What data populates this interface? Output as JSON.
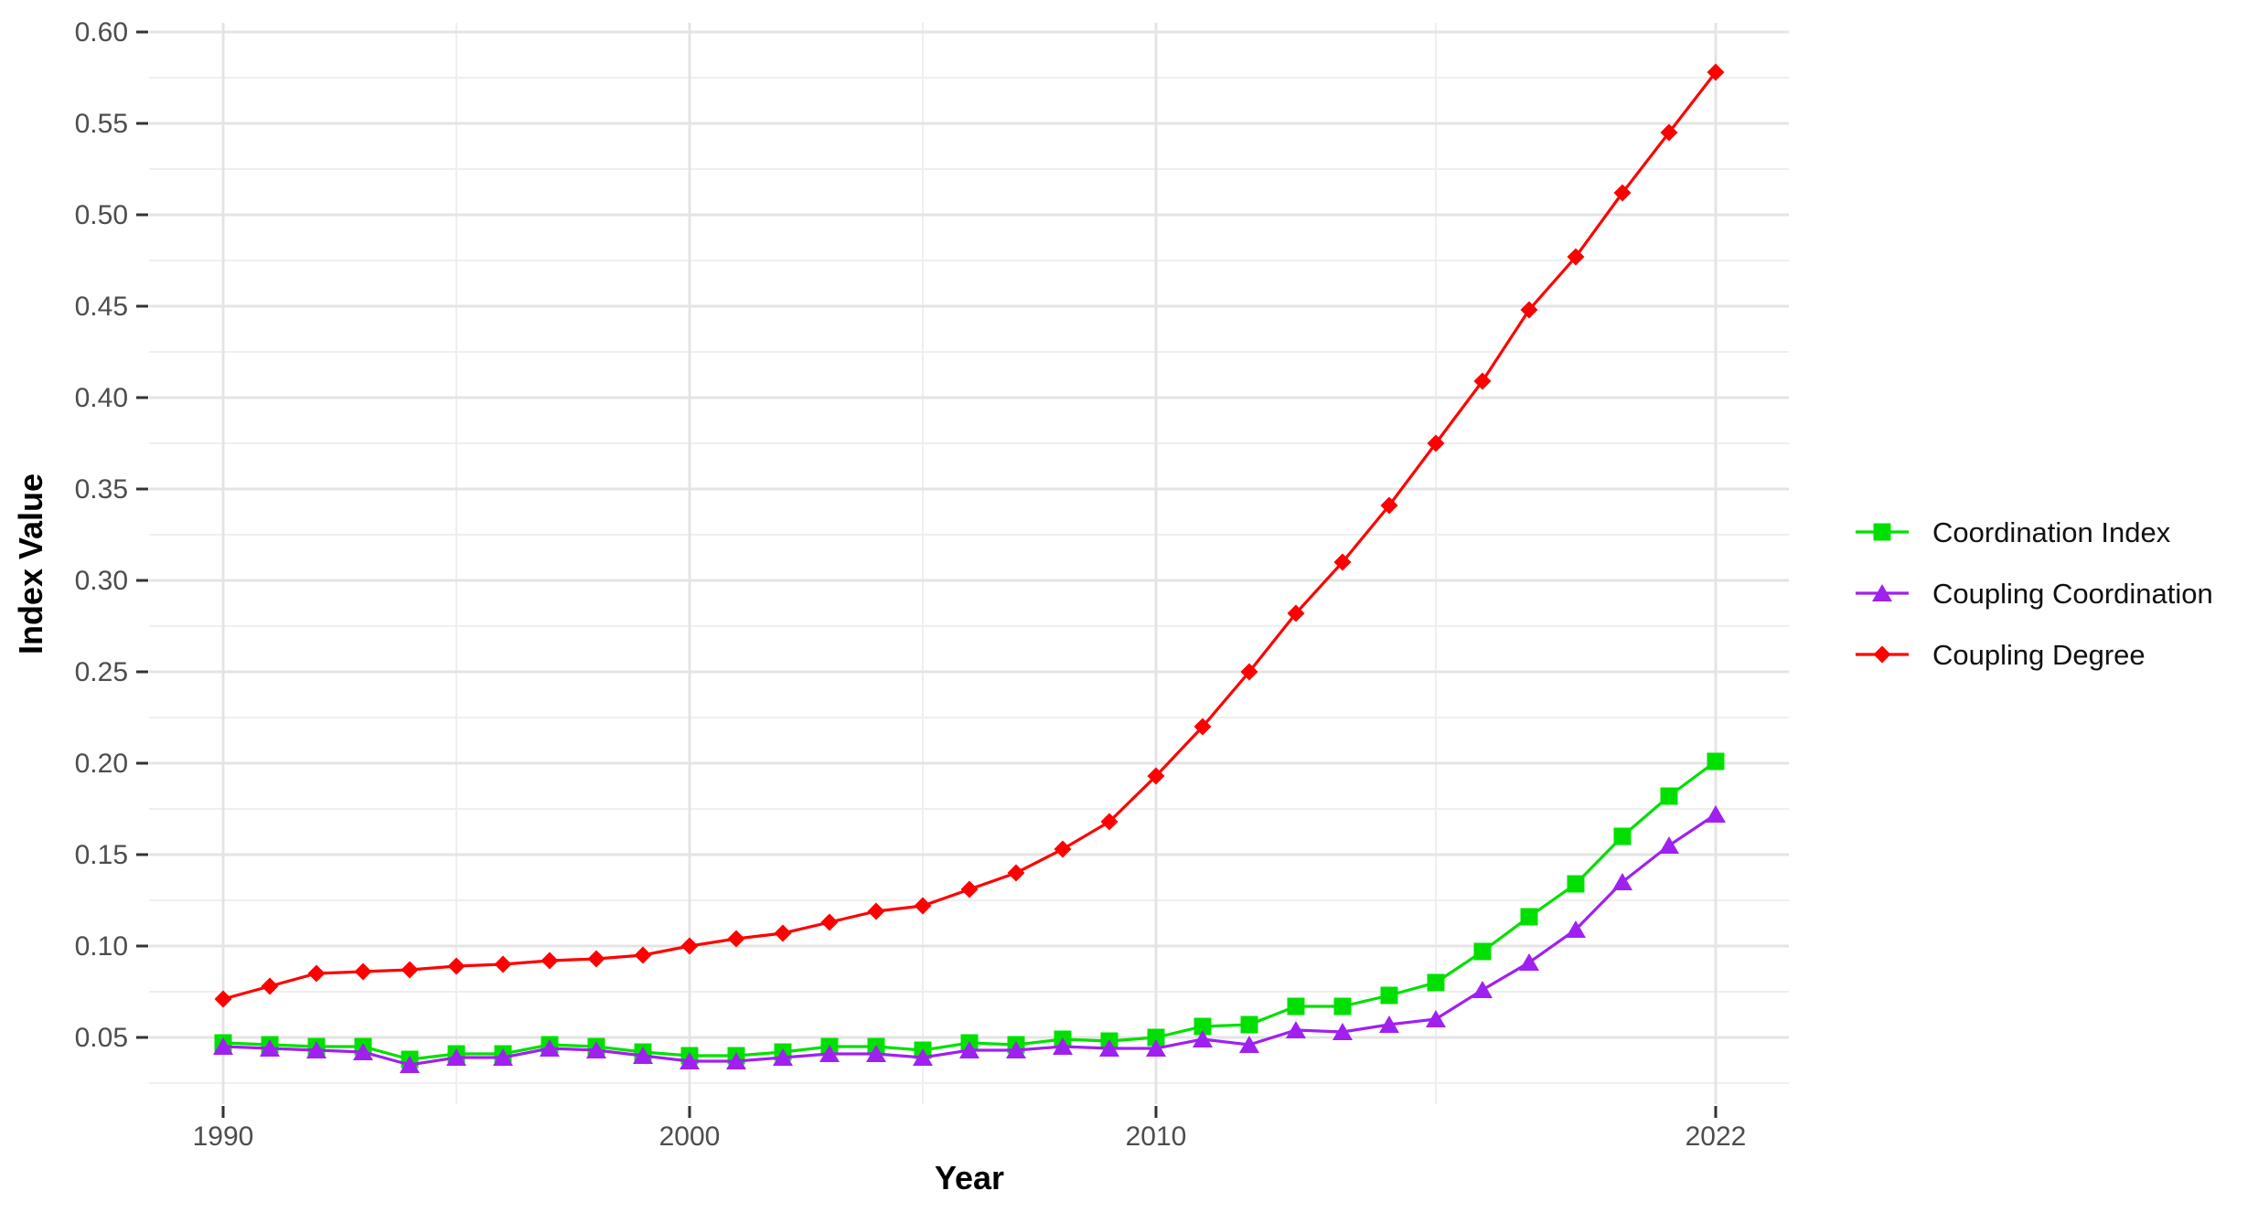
{
  "chart_data": {
    "type": "line",
    "title": "",
    "xlabel": "Year",
    "ylabel": "Index Value",
    "x": [
      1990,
      1991,
      1992,
      1993,
      1994,
      1995,
      1996,
      1997,
      1998,
      1999,
      2000,
      2001,
      2002,
      2003,
      2004,
      2005,
      2006,
      2007,
      2008,
      2009,
      2010,
      2011,
      2012,
      2013,
      2014,
      2015,
      2016,
      2017,
      2018,
      2019,
      2020,
      2021,
      2022
    ],
    "series": [
      {
        "name": "Coordination Index",
        "color": "#00E000",
        "marker": "square",
        "values": [
          0.047,
          0.046,
          0.045,
          0.045,
          0.038,
          0.041,
          0.041,
          0.046,
          0.045,
          0.042,
          0.04,
          0.04,
          0.042,
          0.045,
          0.045,
          0.043,
          0.047,
          0.046,
          0.049,
          0.048,
          0.05,
          0.056,
          0.057,
          0.067,
          0.067,
          0.073,
          0.08,
          0.097,
          0.116,
          0.134,
          0.16,
          0.182,
          0.201
        ]
      },
      {
        "name": "Coupling Coordination",
        "color": "#A020F0",
        "marker": "triangle",
        "values": [
          0.045,
          0.044,
          0.043,
          0.042,
          0.035,
          0.039,
          0.039,
          0.044,
          0.043,
          0.04,
          0.037,
          0.037,
          0.039,
          0.041,
          0.041,
          0.039,
          0.043,
          0.043,
          0.045,
          0.044,
          0.044,
          0.049,
          0.046,
          0.054,
          0.053,
          0.057,
          0.06,
          0.076,
          0.091,
          0.109,
          0.135,
          0.155,
          0.172
        ]
      },
      {
        "name": "Coupling Degree",
        "color": "#FF0000",
        "marker": "diamond",
        "values": [
          0.071,
          0.078,
          0.085,
          0.086,
          0.087,
          0.089,
          0.09,
          0.092,
          0.093,
          0.095,
          0.1,
          0.104,
          0.107,
          0.113,
          0.119,
          0.122,
          0.131,
          0.14,
          0.153,
          0.168,
          0.193,
          0.22,
          0.25,
          0.282,
          0.31,
          0.341,
          0.375,
          0.409,
          0.448,
          0.477,
          0.512,
          0.545,
          0.578
        ]
      }
    ],
    "x_ticks": [
      {
        "v": 1990,
        "label": "1990"
      },
      {
        "v": 2000,
        "label": "2000"
      },
      {
        "v": 2010,
        "label": "2010"
      },
      {
        "v": 2022,
        "label": "2022"
      }
    ],
    "x_minor_gridlines": [
      1995,
      2005,
      2016
    ],
    "y_ticks": [
      {
        "v": 0.6,
        "label": "0.60"
      },
      {
        "v": 0.55,
        "label": "0.55"
      },
      {
        "v": 0.5,
        "label": "0.50"
      },
      {
        "v": 0.45,
        "label": "0.45"
      },
      {
        "v": 0.4,
        "label": "0.40"
      },
      {
        "v": 0.35,
        "label": "0.35"
      },
      {
        "v": 0.3,
        "label": "0.30"
      },
      {
        "v": 0.25,
        "label": "0.25"
      },
      {
        "v": 0.2,
        "label": "0.20"
      },
      {
        "v": 0.15,
        "label": "0.15"
      },
      {
        "v": 0.1,
        "label": "0.10"
      },
      {
        "v": 0.05,
        "label": "0.05"
      }
    ],
    "y_minor_gridlines": [
      0.025,
      0.075,
      0.125,
      0.175,
      0.225,
      0.275,
      0.325,
      0.375,
      0.425,
      0.475,
      0.525,
      0.575
    ],
    "xlim": [
      1988.4,
      2023.6
    ],
    "ylim": [
      0.013,
      0.605
    ],
    "grid": "on",
    "legend_position": "right",
    "colors": {
      "background": "#FFFFFF",
      "major_gridline": "#E4E4E4",
      "minor_gridline": "#EFEFEF",
      "tick_mark": "#333333",
      "tick_label": "#4D4D4D",
      "axis_title": "#000000",
      "legend_text": "#111111"
    }
  }
}
